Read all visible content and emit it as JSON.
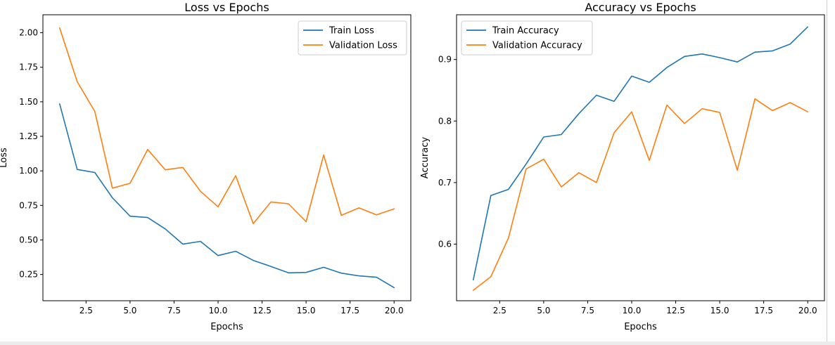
{
  "colors": {
    "train": "#1f77b4",
    "validation": "#ff7f0e"
  },
  "chart_data": [
    {
      "type": "line",
      "title": "Loss vs Epochs",
      "xlabel": "Epochs",
      "ylabel": "Loss",
      "xlim": [
        0.05,
        20.95
      ],
      "ylim": [
        0.06,
        2.13
      ],
      "xticks": [
        2.5,
        5.0,
        7.5,
        10.0,
        12.5,
        15.0,
        17.5,
        20.0
      ],
      "xtick_labels": [
        "2.5",
        "5.0",
        "7.5",
        "10.0",
        "12.5",
        "15.0",
        "17.5",
        "20.0"
      ],
      "yticks": [
        0.25,
        0.5,
        0.75,
        1.0,
        1.25,
        1.5,
        1.75,
        2.0
      ],
      "ytick_labels": [
        "0.25",
        "0.50",
        "0.75",
        "1.00",
        "1.25",
        "1.50",
        "1.75",
        "2.00"
      ],
      "legend_position": "top-right",
      "x": [
        1,
        2,
        3,
        4,
        5,
        6,
        7,
        8,
        9,
        10,
        11,
        12,
        13,
        14,
        15,
        16,
        17,
        18,
        19,
        20
      ],
      "series": [
        {
          "name": "Train Loss",
          "color_key": "train",
          "values": [
            1.485,
            1.01,
            0.988,
            0.805,
            0.672,
            0.662,
            0.58,
            0.47,
            0.49,
            0.387,
            0.418,
            0.352,
            0.308,
            0.262,
            0.265,
            0.302,
            0.26,
            0.24,
            0.23,
            0.155
          ]
        },
        {
          "name": "Validation Loss",
          "color_key": "validation",
          "values": [
            2.035,
            1.645,
            1.43,
            0.875,
            0.91,
            1.155,
            1.008,
            1.025,
            0.852,
            0.74,
            0.965,
            0.618,
            0.775,
            0.762,
            0.632,
            1.115,
            0.678,
            0.732,
            0.682,
            0.725
          ]
        }
      ]
    },
    {
      "type": "line",
      "title": "Accuracy vs Epochs",
      "xlabel": "Epochs",
      "ylabel": "Accuracy",
      "xlim": [
        0.05,
        20.95
      ],
      "ylim": [
        0.508,
        0.9727
      ],
      "xticks": [
        2.5,
        5.0,
        7.5,
        10.0,
        12.5,
        15.0,
        17.5,
        20.0
      ],
      "xtick_labels": [
        "2.5",
        "5.0",
        "7.5",
        "10.0",
        "12.5",
        "15.0",
        "17.5",
        "20.0"
      ],
      "yticks": [
        0.6,
        0.7,
        0.8,
        0.9
      ],
      "ytick_labels": [
        "0.6",
        "0.7",
        "0.8",
        "0.9"
      ],
      "legend_position": "top-left",
      "x": [
        1,
        2,
        3,
        4,
        5,
        6,
        7,
        8,
        9,
        10,
        11,
        12,
        13,
        14,
        15,
        16,
        17,
        18,
        19,
        20
      ],
      "series": [
        {
          "name": "Train Accuracy",
          "color_key": "train",
          "values": [
            0.542,
            0.679,
            0.689,
            0.73,
            0.774,
            0.778,
            0.812,
            0.842,
            0.832,
            0.873,
            0.863,
            0.887,
            0.905,
            0.909,
            0.903,
            0.896,
            0.912,
            0.914,
            0.925,
            0.953
          ]
        },
        {
          "name": "Validation Accuracy",
          "color_key": "validation",
          "values": [
            0.525,
            0.547,
            0.61,
            0.722,
            0.738,
            0.693,
            0.716,
            0.7,
            0.781,
            0.815,
            0.736,
            0.826,
            0.796,
            0.82,
            0.814,
            0.72,
            0.836,
            0.817,
            0.83,
            0.815
          ]
        }
      ]
    }
  ]
}
